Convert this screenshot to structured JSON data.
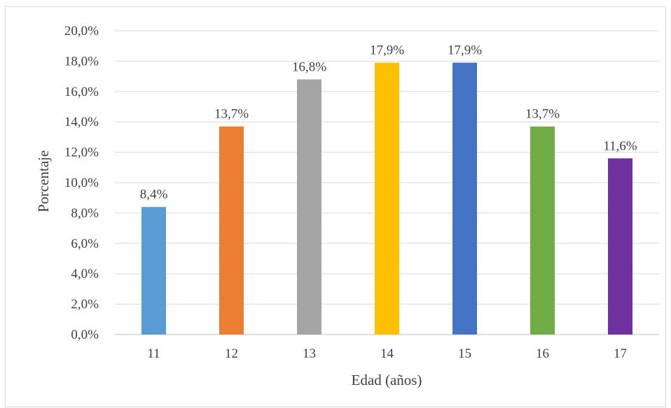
{
  "chart_data": {
    "type": "bar",
    "title": "",
    "xlabel": "Edad (años)",
    "ylabel": "Porcentaje",
    "categories": [
      "11",
      "12",
      "13",
      "14",
      "15",
      "16",
      "17"
    ],
    "values": [
      8.4,
      13.7,
      16.8,
      17.9,
      17.9,
      13.7,
      11.6
    ],
    "data_labels": [
      "8,4%",
      "13,7%",
      "16,8%",
      "17,9%",
      "17,9%",
      "13,7%",
      "11,6%"
    ],
    "bar_colors": [
      "#5b9bd5",
      "#ed7d31",
      "#a5a5a5",
      "#ffc000",
      "#4472c4",
      "#70ad47",
      "#7030a0"
    ],
    "ylim": [
      0,
      20
    ],
    "y_ticks": [
      "0,0%",
      "2,0%",
      "4,0%",
      "6,0%",
      "8,0%",
      "10,0%",
      "12,0%",
      "14,0%",
      "16,0%",
      "18,0%",
      "20,0%"
    ],
    "grid": true,
    "legend": "none"
  }
}
